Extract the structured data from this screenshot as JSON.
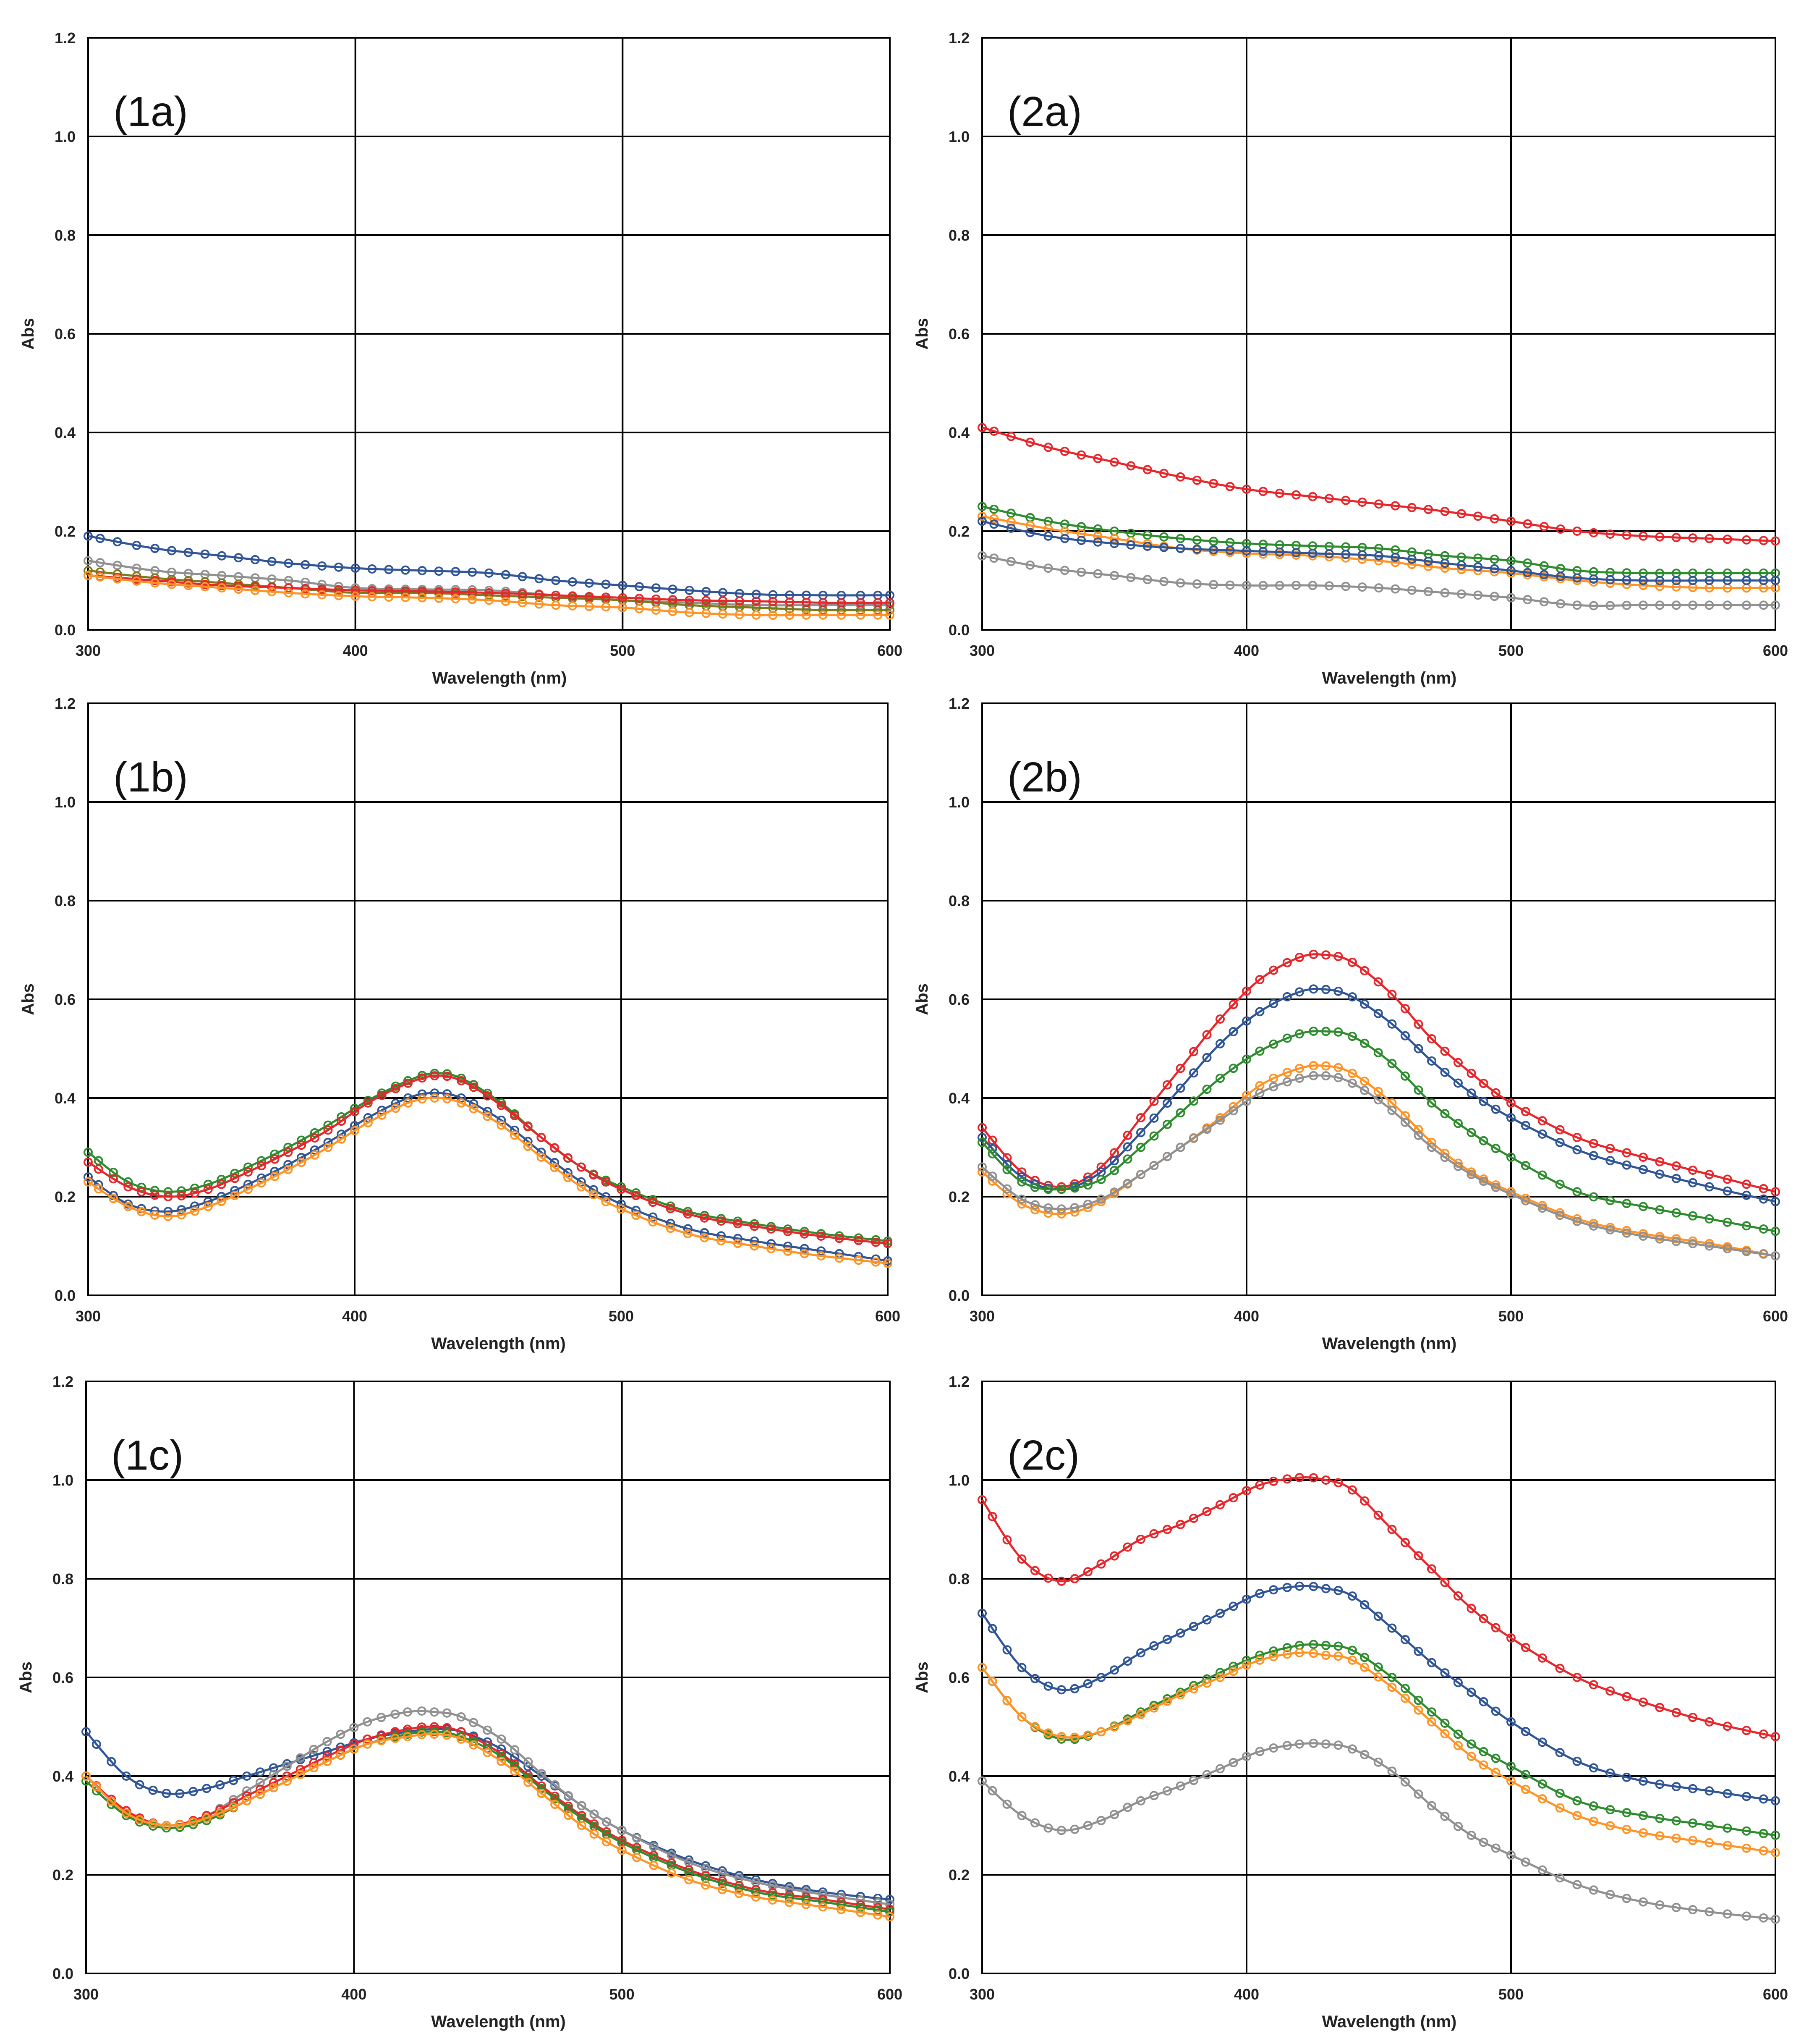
{
  "figure": {
    "panels": [
      {
        "id": "1a",
        "label": "(1a)"
      },
      {
        "id": "2a",
        "label": "(2a)"
      },
      {
        "id": "1b",
        "label": "(1b)"
      },
      {
        "id": "2b",
        "label": "(2b)"
      },
      {
        "id": "1c",
        "label": "(1c)"
      },
      {
        "id": "2c",
        "label": "(2c)"
      }
    ]
  },
  "chart_data": [
    {
      "id": "1a",
      "type": "line",
      "title": "(1a)",
      "xlabel": "Wavelength (nm)",
      "ylabel": "Abs",
      "xlim": [
        300,
        600
      ],
      "ylim": [
        0,
        1.2
      ],
      "xticks": [
        300,
        400,
        500,
        600
      ],
      "yticks": [
        0.0,
        0.2,
        0.4,
        0.6,
        0.8,
        1.0,
        1.2
      ],
      "ytick_labels": [
        "0.0",
        "0.2",
        "0.4",
        "0.6",
        "0.8",
        "1.0",
        "1.2"
      ],
      "grid": true,
      "marker": "open-circle",
      "x": [
        300,
        325,
        350,
        375,
        400,
        425,
        450,
        475,
        500,
        525,
        550,
        575,
        600
      ],
      "series": [
        {
          "color": "#2f5597",
          "values": [
            0.19,
            0.165,
            0.15,
            0.135,
            0.125,
            0.12,
            0.115,
            0.1,
            0.09,
            0.08,
            0.072,
            0.07,
            0.07
          ]
        },
        {
          "color": "#909090",
          "values": [
            0.14,
            0.12,
            0.11,
            0.1,
            0.085,
            0.082,
            0.08,
            0.07,
            0.06,
            0.055,
            0.05,
            0.05,
            0.05
          ]
        },
        {
          "color": "#7a7a1a",
          "values": [
            0.12,
            0.105,
            0.095,
            0.085,
            0.075,
            0.075,
            0.07,
            0.065,
            0.06,
            0.05,
            0.045,
            0.04,
            0.04
          ]
        },
        {
          "color": "#e6262a",
          "values": [
            0.11,
            0.1,
            0.09,
            0.085,
            0.08,
            0.078,
            0.075,
            0.07,
            0.065,
            0.06,
            0.058,
            0.055,
            0.055
          ]
        },
        {
          "color": "#ff9326",
          "values": [
            0.11,
            0.095,
            0.085,
            0.075,
            0.068,
            0.065,
            0.06,
            0.05,
            0.045,
            0.035,
            0.03,
            0.03,
            0.03
          ]
        }
      ]
    },
    {
      "id": "2a",
      "type": "line",
      "title": "(2a)",
      "xlabel": "Wavelength (nm)",
      "ylabel": "Abs",
      "xlim": [
        300,
        600
      ],
      "ylim": [
        0,
        1.2
      ],
      "xticks": [
        300,
        400,
        500,
        600
      ],
      "yticks": [
        0.0,
        0.2,
        0.4,
        0.6,
        0.8,
        1.0,
        1.2
      ],
      "ytick_labels": [
        "0.0",
        "0.2",
        "0.4",
        "0.6",
        "0.8",
        "1.0",
        "1.2"
      ],
      "grid": true,
      "marker": "open-circle",
      "x": [
        300,
        325,
        350,
        375,
        400,
        425,
        450,
        475,
        500,
        525,
        550,
        575,
        600
      ],
      "series": [
        {
          "color": "#e6262a",
          "values": [
            0.41,
            0.37,
            0.34,
            0.31,
            0.285,
            0.27,
            0.255,
            0.24,
            0.22,
            0.2,
            0.19,
            0.185,
            0.18
          ]
        },
        {
          "color": "#2e8b2e",
          "values": [
            0.25,
            0.22,
            0.2,
            0.185,
            0.175,
            0.17,
            0.165,
            0.15,
            0.14,
            0.12,
            0.115,
            0.115,
            0.115
          ]
        },
        {
          "color": "#ff9326",
          "values": [
            0.23,
            0.205,
            0.185,
            0.165,
            0.155,
            0.15,
            0.14,
            0.125,
            0.115,
            0.1,
            0.09,
            0.085,
            0.085
          ]
        },
        {
          "color": "#2f5597",
          "values": [
            0.22,
            0.19,
            0.175,
            0.165,
            0.16,
            0.155,
            0.15,
            0.135,
            0.12,
            0.105,
            0.1,
            0.1,
            0.1
          ]
        },
        {
          "color": "#909090",
          "values": [
            0.15,
            0.125,
            0.11,
            0.095,
            0.09,
            0.09,
            0.085,
            0.075,
            0.065,
            0.05,
            0.05,
            0.05,
            0.05
          ]
        }
      ]
    },
    {
      "id": "1b",
      "type": "line",
      "title": "(1b)",
      "xlabel": "Wavelength (nm)",
      "ylabel": "Abs",
      "xlim": [
        300,
        600
      ],
      "ylim": [
        0,
        1.2
      ],
      "xticks": [
        300,
        400,
        500,
        600
      ],
      "yticks": [
        0.0,
        0.2,
        0.4,
        0.6,
        0.8,
        1.0,
        1.2
      ],
      "ytick_labels": [
        "0.0",
        "0.2",
        "0.4",
        "0.6",
        "0.8",
        "1.0",
        "1.2"
      ],
      "grid": true,
      "marker": "open-circle",
      "x": [
        300,
        315,
        330,
        345,
        360,
        375,
        390,
        405,
        420,
        430,
        440,
        455,
        470,
        485,
        500,
        525,
        550,
        575,
        600
      ],
      "series": [
        {
          "color": "#2e8b2e",
          "values": [
            0.29,
            0.23,
            0.21,
            0.225,
            0.26,
            0.3,
            0.345,
            0.395,
            0.435,
            0.45,
            0.44,
            0.39,
            0.32,
            0.26,
            0.22,
            0.17,
            0.145,
            0.125,
            0.11
          ]
        },
        {
          "color": "#e6262a",
          "values": [
            0.27,
            0.22,
            0.2,
            0.215,
            0.25,
            0.29,
            0.335,
            0.39,
            0.43,
            0.445,
            0.435,
            0.385,
            0.32,
            0.26,
            0.215,
            0.165,
            0.14,
            0.12,
            0.105
          ]
        },
        {
          "color": "#2f5597",
          "values": [
            0.24,
            0.185,
            0.17,
            0.19,
            0.225,
            0.265,
            0.31,
            0.36,
            0.4,
            0.41,
            0.4,
            0.355,
            0.29,
            0.23,
            0.185,
            0.135,
            0.11,
            0.09,
            0.07
          ]
        },
        {
          "color": "#ff9326",
          "values": [
            0.23,
            0.18,
            0.16,
            0.18,
            0.215,
            0.255,
            0.3,
            0.35,
            0.39,
            0.4,
            0.39,
            0.345,
            0.28,
            0.22,
            0.175,
            0.125,
            0.1,
            0.08,
            0.065
          ]
        }
      ]
    },
    {
      "id": "2b",
      "type": "line",
      "title": "(2b)",
      "xlabel": "Wavelength (nm)",
      "ylabel": "Abs",
      "xlim": [
        300,
        600
      ],
      "ylim": [
        0,
        1.2
      ],
      "xticks": [
        300,
        400,
        500,
        600
      ],
      "yticks": [
        0.0,
        0.2,
        0.4,
        0.6,
        0.8,
        1.0,
        1.2
      ],
      "ytick_labels": [
        "0.0",
        "0.2",
        "0.4",
        "0.6",
        "0.8",
        "1.0",
        "1.2"
      ],
      "grid": true,
      "marker": "open-circle",
      "x": [
        300,
        315,
        330,
        345,
        360,
        375,
        390,
        405,
        420,
        430,
        440,
        455,
        470,
        485,
        500,
        525,
        550,
        575,
        600
      ],
      "series": [
        {
          "color": "#e6262a",
          "values": [
            0.34,
            0.25,
            0.22,
            0.26,
            0.36,
            0.46,
            0.56,
            0.64,
            0.685,
            0.69,
            0.675,
            0.61,
            0.52,
            0.45,
            0.39,
            0.32,
            0.28,
            0.245,
            0.21
          ]
        },
        {
          "color": "#2f5597",
          "values": [
            0.32,
            0.24,
            0.215,
            0.25,
            0.33,
            0.42,
            0.51,
            0.575,
            0.615,
            0.62,
            0.605,
            0.55,
            0.475,
            0.41,
            0.36,
            0.295,
            0.255,
            0.22,
            0.19
          ]
        },
        {
          "color": "#2e8b2e",
          "values": [
            0.31,
            0.23,
            0.215,
            0.235,
            0.3,
            0.37,
            0.44,
            0.495,
            0.53,
            0.535,
            0.525,
            0.47,
            0.39,
            0.33,
            0.28,
            0.21,
            0.18,
            0.155,
            0.13
          ]
        },
        {
          "color": "#ff9326",
          "values": [
            0.25,
            0.185,
            0.165,
            0.19,
            0.245,
            0.3,
            0.36,
            0.425,
            0.46,
            0.465,
            0.45,
            0.39,
            0.31,
            0.25,
            0.21,
            0.155,
            0.125,
            0.105,
            0.08
          ]
        },
        {
          "color": "#909090",
          "values": [
            0.26,
            0.195,
            0.175,
            0.195,
            0.245,
            0.3,
            0.355,
            0.41,
            0.44,
            0.445,
            0.43,
            0.375,
            0.3,
            0.245,
            0.205,
            0.15,
            0.12,
            0.1,
            0.08
          ]
        }
      ]
    },
    {
      "id": "1c",
      "type": "line",
      "title": "(1c)",
      "xlabel": "Wavelength (nm)",
      "ylabel": "Abs",
      "xlim": [
        300,
        600
      ],
      "ylim": [
        0,
        1.2
      ],
      "xticks": [
        300,
        400,
        500,
        600
      ],
      "yticks": [
        0.0,
        0.2,
        0.4,
        0.6,
        0.8,
        1.0,
        1.2
      ],
      "ytick_labels": [
        "0.0",
        "0.2",
        "0.4",
        "0.6",
        "0.8",
        "1.0",
        "1.2"
      ],
      "grid": true,
      "marker": "open-circle",
      "x": [
        300,
        315,
        330,
        345,
        360,
        375,
        390,
        405,
        420,
        430,
        440,
        455,
        470,
        485,
        500,
        525,
        550,
        575,
        600
      ],
      "series": [
        {
          "color": "#2f5597",
          "values": [
            0.49,
            0.4,
            0.365,
            0.375,
            0.4,
            0.425,
            0.45,
            0.475,
            0.49,
            0.495,
            0.49,
            0.455,
            0.4,
            0.34,
            0.29,
            0.23,
            0.19,
            0.165,
            0.15
          ]
        },
        {
          "color": "#909090",
          "values": [
            0.4,
            0.33,
            0.3,
            0.32,
            0.37,
            0.42,
            0.47,
            0.51,
            0.53,
            0.53,
            0.52,
            0.475,
            0.405,
            0.34,
            0.29,
            0.225,
            0.185,
            0.16,
            0.14
          ]
        },
        {
          "color": "#e6262a",
          "values": [
            0.4,
            0.33,
            0.3,
            0.32,
            0.36,
            0.4,
            0.44,
            0.475,
            0.495,
            0.5,
            0.49,
            0.445,
            0.38,
            0.32,
            0.27,
            0.21,
            0.17,
            0.15,
            0.13
          ]
        },
        {
          "color": "#2e8b2e",
          "values": [
            0.39,
            0.32,
            0.295,
            0.31,
            0.35,
            0.39,
            0.43,
            0.465,
            0.485,
            0.49,
            0.48,
            0.44,
            0.375,
            0.315,
            0.265,
            0.205,
            0.165,
            0.145,
            0.125
          ]
        },
        {
          "color": "#ff9326",
          "values": [
            0.4,
            0.325,
            0.3,
            0.315,
            0.35,
            0.39,
            0.43,
            0.465,
            0.48,
            0.485,
            0.475,
            0.43,
            0.365,
            0.3,
            0.25,
            0.19,
            0.155,
            0.135,
            0.115
          ]
        }
      ]
    },
    {
      "id": "2c",
      "type": "line",
      "title": "(2c)",
      "xlabel": "Wavelength (nm)",
      "ylabel": "Abs",
      "xlim": [
        300,
        600
      ],
      "ylim": [
        0,
        1.2
      ],
      "xticks": [
        300,
        400,
        500,
        600
      ],
      "yticks": [
        0.0,
        0.2,
        0.4,
        0.6,
        0.8,
        1.0,
        1.2
      ],
      "ytick_labels": [
        "0.0",
        "0.2",
        "0.4",
        "0.6",
        "0.8",
        "1.0",
        "1.2"
      ],
      "grid": true,
      "marker": "open-circle",
      "x": [
        300,
        315,
        330,
        345,
        360,
        375,
        390,
        405,
        420,
        430,
        440,
        455,
        470,
        485,
        500,
        525,
        550,
        575,
        600
      ],
      "series": [
        {
          "color": "#e6262a",
          "values": [
            0.96,
            0.84,
            0.795,
            0.83,
            0.88,
            0.91,
            0.95,
            0.99,
            1.005,
            1.0,
            0.98,
            0.9,
            0.82,
            0.74,
            0.68,
            0.6,
            0.55,
            0.51,
            0.48
          ]
        },
        {
          "color": "#2f5597",
          "values": [
            0.73,
            0.62,
            0.575,
            0.6,
            0.65,
            0.69,
            0.73,
            0.77,
            0.785,
            0.78,
            0.765,
            0.7,
            0.63,
            0.57,
            0.51,
            0.43,
            0.39,
            0.37,
            0.35
          ]
        },
        {
          "color": "#2e8b2e",
          "values": [
            0.62,
            0.52,
            0.475,
            0.49,
            0.53,
            0.57,
            0.61,
            0.645,
            0.665,
            0.665,
            0.655,
            0.6,
            0.53,
            0.465,
            0.42,
            0.35,
            0.32,
            0.3,
            0.28
          ]
        },
        {
          "color": "#ff9326",
          "values": [
            0.62,
            0.52,
            0.48,
            0.49,
            0.525,
            0.565,
            0.6,
            0.635,
            0.65,
            0.645,
            0.635,
            0.58,
            0.51,
            0.44,
            0.39,
            0.32,
            0.285,
            0.265,
            0.245
          ]
        },
        {
          "color": "#909090",
          "values": [
            0.39,
            0.32,
            0.29,
            0.31,
            0.35,
            0.38,
            0.415,
            0.45,
            0.465,
            0.465,
            0.455,
            0.41,
            0.34,
            0.28,
            0.24,
            0.18,
            0.145,
            0.125,
            0.11
          ]
        }
      ]
    }
  ]
}
